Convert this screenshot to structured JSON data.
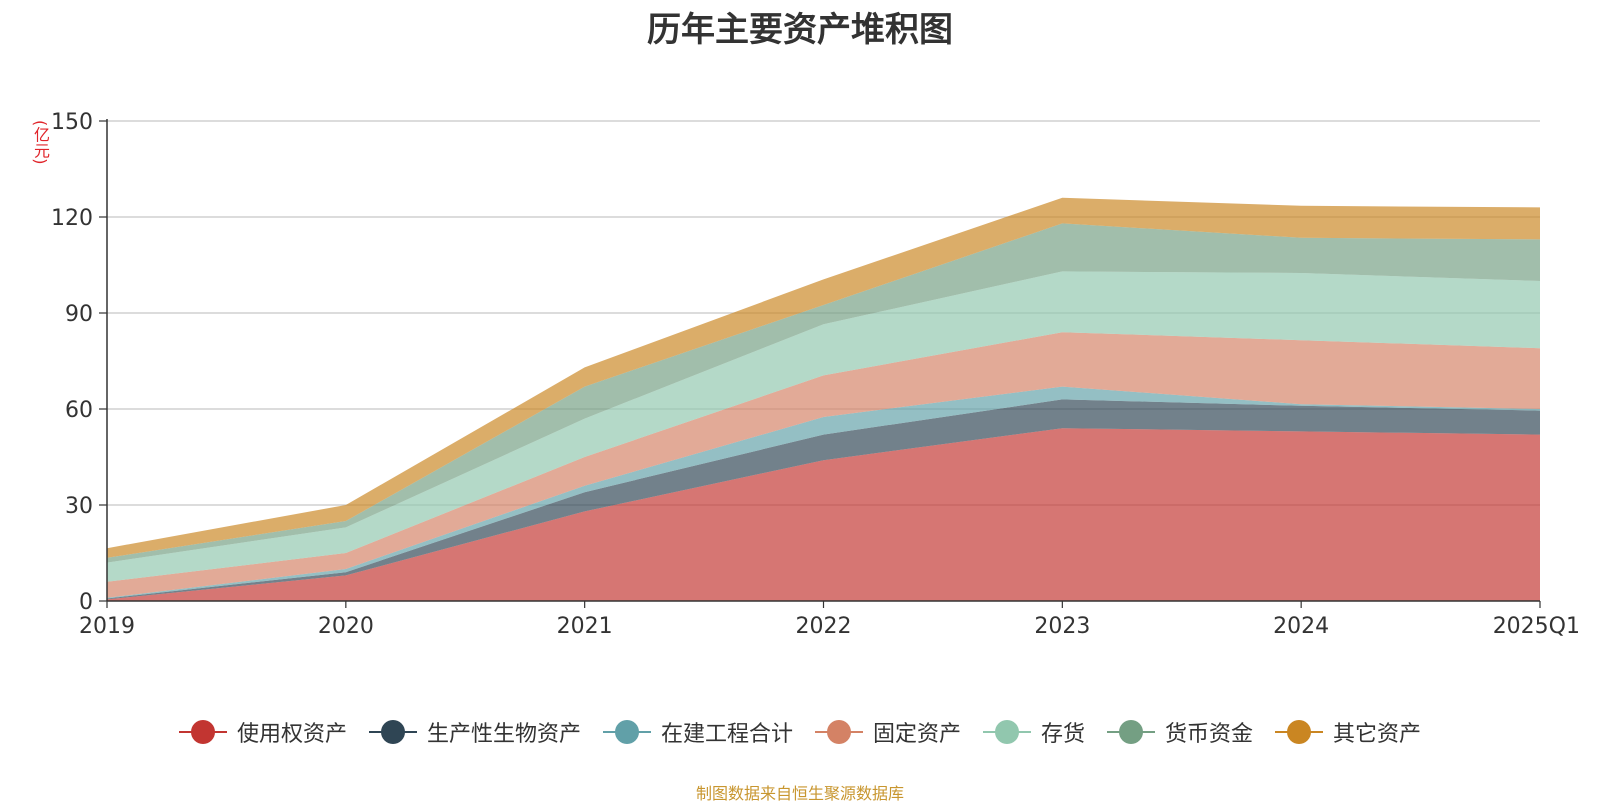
{
  "chart_data": {
    "type": "area",
    "stacked": true,
    "title": "历年主要资产堆积图",
    "unit": "(亿元)",
    "categories": [
      "2019",
      "2020",
      "2021",
      "2022",
      "2023",
      "2024",
      "2025Q1"
    ],
    "ylim": [
      0,
      150
    ],
    "yticks": [
      0,
      30,
      60,
      90,
      120,
      150
    ],
    "grid": true,
    "legend_position": "bottom",
    "series": [
      {
        "name": "使用权资产",
        "color": "#c23531",
        "values": [
          0.5,
          8,
          28,
          44,
          54,
          53,
          52
        ]
      },
      {
        "name": "生产性生物资产",
        "color": "#2f4554",
        "values": [
          0.3,
          1,
          6,
          8,
          9,
          8,
          7.5
        ]
      },
      {
        "name": "在建工程合计",
        "color": "#61a0a8",
        "values": [
          0.2,
          1,
          2,
          5.5,
          4,
          0.5,
          0.5
        ]
      },
      {
        "name": "固定资产",
        "color": "#d48265",
        "values": [
          5,
          5,
          9,
          13,
          17,
          20,
          19
        ]
      },
      {
        "name": "存货",
        "color": "#91c7ae",
        "values": [
          6,
          8,
          12,
          16,
          19,
          21,
          21
        ]
      },
      {
        "name": "货币资金",
        "color": "#749f83",
        "values": [
          1.5,
          2,
          10,
          6,
          15,
          11,
          13
        ]
      },
      {
        "name": "其它资产",
        "color": "#ca8622",
        "values": [
          3,
          5,
          6,
          8,
          8,
          10,
          10
        ]
      }
    ]
  },
  "footer": {
    "source": "制图数据来自恒生聚源数据库"
  }
}
